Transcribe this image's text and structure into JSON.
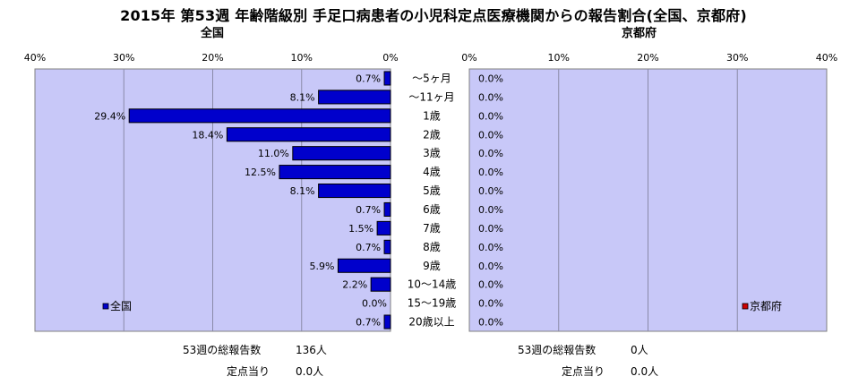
{
  "header": {
    "title": "2015年 第53週 年齢階級別 手足口病患者の小児科定点医療機関からの報告割合(全国、京都府)"
  },
  "chart_data": [
    {
      "type": "bar",
      "orientation": "horizontal",
      "title": "全国",
      "x_direction": "reversed",
      "xlim": [
        0,
        40
      ],
      "x_ticks": [
        "40%",
        "30%",
        "20%",
        "10%",
        "0%"
      ],
      "categories": [
        "〜5ヶ月",
        "〜11ヶ月",
        "1歳",
        "2歳",
        "3歳",
        "4歳",
        "5歳",
        "6歳",
        "7歳",
        "8歳",
        "9歳",
        "10〜14歳",
        "15〜19歳",
        "20歳以上"
      ],
      "series": [
        {
          "name": "全国",
          "color": "#0000cc",
          "values": [
            0.7,
            8.1,
            29.4,
            18.4,
            11.0,
            12.5,
            8.1,
            0.7,
            1.5,
            0.7,
            5.9,
            2.2,
            0.0,
            0.7
          ],
          "value_labels": [
            "0.7%",
            "8.1%",
            "29.4%",
            "18.4%",
            "11.0%",
            "12.5%",
            "8.1%",
            "0.7%",
            "1.5%",
            "0.7%",
            "5.9%",
            "2.2%",
            "0.0%",
            "0.7%"
          ]
        }
      ],
      "legend": "bottom-left",
      "grid": true,
      "background": "#c8c8f8"
    },
    {
      "type": "bar",
      "orientation": "horizontal",
      "title": "京都府",
      "xlim": [
        0,
        40
      ],
      "x_ticks": [
        "0%",
        "10%",
        "20%",
        "30%",
        "40%"
      ],
      "categories": [
        "〜5ヶ月",
        "〜11ヶ月",
        "1歳",
        "2歳",
        "3歳",
        "4歳",
        "5歳",
        "6歳",
        "7歳",
        "8歳",
        "9歳",
        "10〜14歳",
        "15〜19歳",
        "20歳以上"
      ],
      "series": [
        {
          "name": "京都府",
          "color": "#cc0000",
          "values": [
            0.0,
            0.0,
            0.0,
            0.0,
            0.0,
            0.0,
            0.0,
            0.0,
            0.0,
            0.0,
            0.0,
            0.0,
            0.0,
            0.0
          ],
          "value_labels": [
            "0.0%",
            "0.0%",
            "0.0%",
            "0.0%",
            "0.0%",
            "0.0%",
            "0.0%",
            "0.0%",
            "0.0%",
            "0.0%",
            "0.0%",
            "0.0%",
            "0.0%",
            "0.0%"
          ]
        }
      ],
      "legend": "bottom-right",
      "grid": true,
      "background": "#c8c8f8"
    }
  ],
  "stats": {
    "national": {
      "total_label": "53週の総報告数",
      "total_value": "136人",
      "per_label": "定点当り",
      "per_value": "0.0人"
    },
    "kyoto": {
      "total_label": "53週の総報告数",
      "total_value": "0人",
      "per_label": "定点当り",
      "per_value": "0.0人"
    }
  }
}
